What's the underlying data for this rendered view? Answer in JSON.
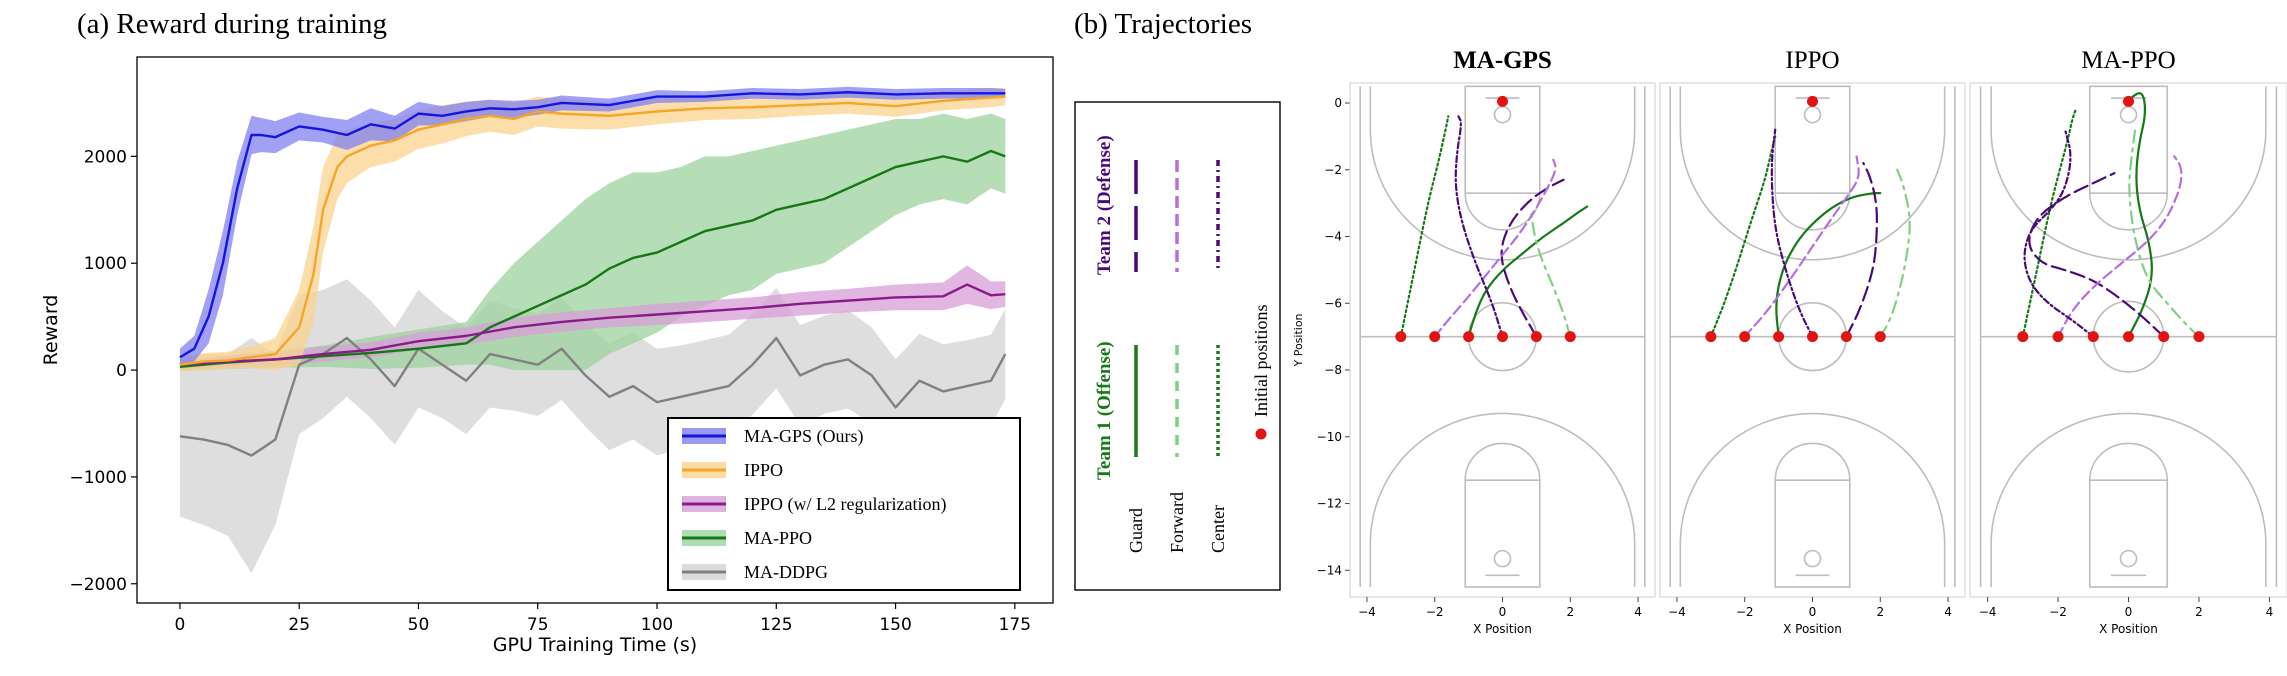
{
  "panel_a": {
    "caption": "(a) Reward during training"
  },
  "panel_b": {
    "caption": "(b) Trajectories"
  },
  "chart_data": [
    {
      "type": "line",
      "title": "(a) Reward during training",
      "xlabel": "GPU Training Time (s)",
      "ylabel": "Reward",
      "xlim": [
        -9,
        183
      ],
      "ylim": [
        -2180,
        2930
      ],
      "xticks": [
        0,
        25,
        50,
        75,
        100,
        125,
        150,
        175
      ],
      "yticks": [
        -2000,
        -1000,
        0,
        1000,
        2000
      ],
      "legend_position": "bottom-right",
      "legend": [
        "MA-GPS (Ours)",
        "IPPO",
        "IPPO (w/ L2 regularization)",
        "MA-PPO",
        "MA-DDPG"
      ],
      "series": [
        {
          "name": "MA-GPS (Ours)",
          "color": "#1515e0",
          "band": "#8080f0",
          "x": [
            0,
            3,
            6,
            9,
            12,
            15,
            17,
            20,
            25,
            30,
            35,
            40,
            45,
            50,
            55,
            60,
            65,
            70,
            75,
            80,
            90,
            100,
            110,
            120,
            130,
            140,
            150,
            160,
            170,
            173
          ],
          "y": [
            120,
            200,
            500,
            1000,
            1700,
            2200,
            2200,
            2180,
            2280,
            2250,
            2200,
            2300,
            2260,
            2400,
            2380,
            2420,
            2450,
            2440,
            2460,
            2500,
            2480,
            2560,
            2560,
            2590,
            2580,
            2600,
            2580,
            2590,
            2590,
            2590
          ],
          "spread": [
            80,
            120,
            250,
            300,
            250,
            180,
            160,
            150,
            130,
            120,
            140,
            150,
            120,
            110,
            90,
            90,
            80,
            80,
            70,
            70,
            60,
            60,
            50,
            50,
            50,
            50,
            50,
            50,
            50,
            40
          ]
        },
        {
          "name": "IPPO",
          "color": "#f5a52a",
          "band": "#fbd38e",
          "x": [
            0,
            5,
            10,
            15,
            20,
            25,
            28,
            30,
            33,
            35,
            40,
            45,
            50,
            55,
            60,
            65,
            70,
            75,
            80,
            90,
            100,
            110,
            120,
            130,
            140,
            150,
            160,
            170,
            173
          ],
          "y": [
            50,
            80,
            90,
            120,
            150,
            400,
            900,
            1500,
            1900,
            2000,
            2100,
            2150,
            2250,
            2300,
            2350,
            2380,
            2350,
            2420,
            2400,
            2380,
            2420,
            2450,
            2460,
            2480,
            2500,
            2470,
            2520,
            2550,
            2560
          ],
          "spread": [
            60,
            80,
            80,
            100,
            150,
            350,
            450,
            400,
            300,
            250,
            200,
            200,
            180,
            180,
            160,
            150,
            150,
            140,
            140,
            130,
            120,
            110,
            110,
            100,
            100,
            100,
            90,
            90,
            80
          ]
        },
        {
          "name": "IPPO (w/ L2 regularization)",
          "color": "#8a1a8a",
          "band": "#d79ed7",
          "x": [
            0,
            10,
            20,
            30,
            40,
            50,
            60,
            70,
            80,
            90,
            100,
            110,
            120,
            130,
            140,
            150,
            160,
            165,
            170,
            173
          ],
          "y": [
            50,
            80,
            100,
            150,
            190,
            270,
            320,
            400,
            450,
            490,
            520,
            550,
            580,
            620,
            650,
            680,
            690,
            800,
            700,
            710
          ],
          "spread": [
            40,
            50,
            60,
            70,
            70,
            80,
            80,
            90,
            90,
            90,
            100,
            100,
            100,
            110,
            110,
            120,
            130,
            180,
            130,
            120
          ]
        },
        {
          "name": "MA-PPO",
          "color": "#147814",
          "band": "#9ed39e",
          "x": [
            0,
            10,
            20,
            30,
            40,
            50,
            60,
            65,
            70,
            75,
            80,
            85,
            90,
            95,
            100,
            105,
            110,
            115,
            120,
            125,
            130,
            135,
            140,
            145,
            150,
            155,
            160,
            165,
            170,
            173
          ],
          "y": [
            30,
            70,
            100,
            130,
            160,
            200,
            250,
            400,
            500,
            600,
            700,
            800,
            950,
            1050,
            1100,
            1200,
            1300,
            1350,
            1400,
            1500,
            1550,
            1600,
            1700,
            1800,
            1900,
            1950,
            2000,
            1950,
            2050,
            2000
          ],
          "spread": [
            40,
            60,
            80,
            100,
            150,
            180,
            200,
            350,
            500,
            600,
            700,
            800,
            800,
            800,
            750,
            700,
            700,
            650,
            650,
            600,
            600,
            600,
            550,
            500,
            450,
            400,
            400,
            400,
            350,
            350
          ]
        },
        {
          "name": "MA-DDPG",
          "color": "#808080",
          "band": "#d3d3d3",
          "x": [
            0,
            5,
            10,
            15,
            20,
            25,
            30,
            35,
            40,
            45,
            50,
            55,
            60,
            65,
            70,
            75,
            80,
            85,
            90,
            95,
            100,
            105,
            110,
            115,
            120,
            125,
            130,
            135,
            140,
            145,
            150,
            155,
            160,
            165,
            170,
            173
          ],
          "y": [
            -620,
            -650,
            -700,
            -800,
            -650,
            50,
            150,
            300,
            100,
            -150,
            200,
            50,
            -100,
            150,
            100,
            50,
            200,
            -50,
            -250,
            -150,
            -300,
            -250,
            -200,
            -150,
            50,
            300,
            -50,
            50,
            100,
            -50,
            -350,
            -100,
            -200,
            -150,
            -100,
            150
          ],
          "spread": [
            750,
            800,
            850,
            1100,
            800,
            650,
            600,
            550,
            550,
            550,
            550,
            500,
            500,
            500,
            480,
            480,
            480,
            480,
            500,
            500,
            500,
            480,
            480,
            480,
            470,
            470,
            470,
            460,
            460,
            450,
            450,
            440,
            440,
            430,
            430,
            420
          ]
        }
      ]
    },
    {
      "type": "line",
      "title": "(b) Trajectories",
      "xlabel": "X Position",
      "ylabel": "Y Position",
      "xlim": [
        -4.5,
        4.5
      ],
      "ylim": [
        -14.8,
        0.6
      ],
      "xticks": [
        -4,
        -2,
        0,
        2,
        4
      ],
      "yticks": [
        0,
        -2,
        -4,
        -6,
        -8,
        -10,
        -12,
        -14
      ],
      "initial_positions": [
        [
          -3,
          -7
        ],
        [
          -2,
          -7
        ],
        [
          -1,
          -7
        ],
        [
          0,
          -7
        ],
        [
          1,
          -7
        ],
        [
          2,
          -7
        ]
      ],
      "ball_marker": [
        0,
        0.05
      ],
      "subplots": [
        {
          "title": "MA-GPS",
          "bold": true,
          "series": [
            {
              "role": "Team 1 Guard",
              "x": [
                -1,
                -0.8,
                -0.5,
                0,
                0.6,
                1.2,
                1.8,
                2.2,
                2.5
              ],
              "y": [
                -7,
                -6.3,
                -5.6,
                -5,
                -4.5,
                -4,
                -3.6,
                -3.3,
                -3.1
              ]
            },
            {
              "role": "Team 1 Forward",
              "x": [
                2,
                1.8,
                1.5,
                1.2,
                1,
                0.9,
                0.85
              ],
              "y": [
                -7,
                -6.3,
                -5.5,
                -4.8,
                -4.2,
                -3.7,
                -3.3
              ]
            },
            {
              "role": "Team 1 Center",
              "x": [
                -3,
                -2.8,
                -2.5,
                -2.2,
                -1.9,
                -1.7,
                -1.6
              ],
              "y": [
                -7,
                -6,
                -4.5,
                -3,
                -1.8,
                -0.9,
                -0.4
              ]
            },
            {
              "role": "Team 2 Guard",
              "x": [
                1,
                0.6,
                0.2,
                -0.1,
                0.2,
                0.8,
                1.4,
                1.8
              ],
              "y": [
                -7,
                -6.3,
                -5.5,
                -4.5,
                -3.6,
                -2.9,
                -2.5,
                -2.3
              ]
            },
            {
              "role": "Team 2 Forward",
              "x": [
                -2,
                -1.6,
                -1,
                -0.2,
                0.6,
                1.2,
                1.6,
                1.5
              ],
              "y": [
                -7,
                -6.5,
                -5.8,
                -4.8,
                -3.8,
                -2.8,
                -2,
                -1.7
              ]
            },
            {
              "role": "Team 2 Center",
              "x": [
                0,
                -0.3,
                -0.8,
                -1.2,
                -1.4,
                -1.35,
                -1.2,
                -1.3
              ],
              "y": [
                -7,
                -6,
                -4.8,
                -3.6,
                -2.5,
                -1.5,
                -0.6,
                -0.4
              ]
            }
          ]
        },
        {
          "title": "IPPO",
          "bold": false,
          "series": [
            {
              "role": "Team 1 Guard",
              "x": [
                -1,
                -1.1,
                -0.9,
                -0.5,
                0,
                0.6,
                1.2,
                1.8,
                2
              ],
              "y": [
                -7,
                -6,
                -5,
                -4.2,
                -3.6,
                -3.1,
                -2.8,
                -2.7,
                -2.7
              ]
            },
            {
              "role": "Team 1 Forward",
              "x": [
                2,
                2.3,
                2.6,
                2.8,
                2.9,
                2.7,
                2.5
              ],
              "y": [
                -7,
                -6.5,
                -5.5,
                -4.5,
                -3.5,
                -2.5,
                -2
              ]
            },
            {
              "role": "Team 1 Center",
              "x": [
                -3,
                -2.6,
                -2.2,
                -1.8,
                -1.4,
                -1.2,
                -1.1
              ],
              "y": [
                -7,
                -6,
                -4.8,
                -3.5,
                -2.3,
                -1.4,
                -1
              ]
            },
            {
              "role": "Team 2 Guard",
              "x": [
                1,
                1.4,
                1.8,
                1.9,
                1.9,
                1.7,
                1.5
              ],
              "y": [
                -7,
                -6.2,
                -5,
                -4,
                -3,
                -2.2,
                -1.8
              ]
            },
            {
              "role": "Team 2 Forward",
              "x": [
                -2,
                -1.3,
                -0.6,
                0,
                0.6,
                1.1,
                1.4,
                1.3
              ],
              "y": [
                -7,
                -6.2,
                -5.2,
                -4.3,
                -3.4,
                -2.7,
                -2.2,
                -1.6
              ]
            },
            {
              "role": "Team 2 Center",
              "x": [
                0,
                -0.4,
                -0.8,
                -1.1,
                -1.2,
                -1.2,
                -1.1
              ],
              "y": [
                -7,
                -6.2,
                -5,
                -3.8,
                -2.6,
                -1.6,
                -0.8
              ]
            }
          ]
        },
        {
          "title": "MA-PPO",
          "bold": false,
          "series": [
            {
              "role": "Team 1 Guard",
              "x": [
                0,
                0.4,
                0.7,
                0.6,
                0.3,
                0.2,
                0.3,
                0.5,
                0.4,
                0
              ],
              "y": [
                -7,
                -6.2,
                -5.2,
                -4.2,
                -3.2,
                -2.2,
                -1.2,
                -0.3,
                0.4,
                0.1
              ]
            },
            {
              "role": "Team 1 Forward",
              "x": [
                2,
                1.6,
                1.1,
                0.6,
                0.3,
                0.1,
                0,
                0.1,
                0.2
              ],
              "y": [
                -7,
                -6.6,
                -6,
                -5.4,
                -4.6,
                -3.6,
                -2.5,
                -1.5,
                -0.7
              ]
            },
            {
              "role": "Team 1 Center",
              "x": [
                -3,
                -2.8,
                -2.5,
                -2.2,
                -1.9,
                -1.7,
                -1.6,
                -1.5
              ],
              "y": [
                -7,
                -6,
                -4.5,
                -3,
                -1.8,
                -1,
                -0.5,
                -0.2
              ]
            },
            {
              "role": "Team 2 Guard",
              "x": [
                1,
                0.4,
                -0.3,
                -1,
                -1.8,
                -2.5,
                -2.9,
                -2.6,
                -1.8,
                -1,
                -0.4
              ],
              "y": [
                -7,
                -6.4,
                -5.8,
                -5.3,
                -5,
                -4.8,
                -4.2,
                -3.4,
                -2.8,
                -2.4,
                -2.1
              ]
            },
            {
              "role": "Team 2 Forward",
              "x": [
                -2,
                -1.6,
                -1,
                -0.2,
                0.5,
                1,
                1.3,
                1.5,
                1.5,
                1.3
              ],
              "y": [
                -7,
                -6.2,
                -5.5,
                -4.8,
                -4.2,
                -3.6,
                -3,
                -2.4,
                -1.9,
                -1.6
              ]
            },
            {
              "role": "Team 2 Center",
              "x": [
                -1,
                -1.6,
                -2.3,
                -2.8,
                -3,
                -2.8,
                -2.2,
                -1.8,
                -1.6,
                -1.8
              ],
              "y": [
                -7,
                -6.5,
                -6,
                -5.4,
                -4.6,
                -3.8,
                -3.2,
                -2.6,
                -1.6,
                -0.8
              ]
            }
          ]
        }
      ]
    }
  ],
  "role_legend": {
    "team2_label": "Team 2 (Defense)",
    "team1_label": "Team 1 (Offense)",
    "initial_label": "Initial positions",
    "roles": [
      "Guard",
      "Forward",
      "Center"
    ],
    "team1_color": "#157a15",
    "team1_light": "#7fd17f",
    "team2_color": "#4a0a7a",
    "team2_light": "#b56ee0",
    "initial_color": "#e11414"
  }
}
